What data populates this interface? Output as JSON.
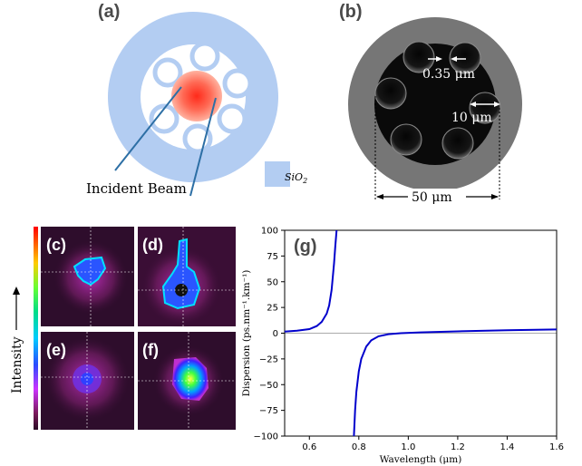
{
  "panel_a": {
    "letter": "(a)",
    "incident_label": "Incident Beam",
    "legend_label": "SiO",
    "legend_sub": "2",
    "colors": {
      "cladding": "#b3cdf2",
      "core": "#ff5a3c",
      "line": "#2d6fa5"
    }
  },
  "panel_b": {
    "letter": "(b)",
    "gap_label": "0.35 μm",
    "tube_label": "10 μm",
    "core_label": "50 μm",
    "colors": {
      "jacket": "#767676",
      "core": "#0a0a0a"
    }
  },
  "panel_cf": {
    "letters": [
      "(c)",
      "(d)",
      "(e)",
      "(f)"
    ],
    "intensity_label": "Intensity"
  },
  "chart_data": {
    "type": "line",
    "panel_letter": "(g)",
    "xlabel": "Wavelength (μm)",
    "ylabel": "Dispersion (ps.nm⁻¹.km⁻¹)",
    "xlim": [
      0.5,
      1.6
    ],
    "ylim": [
      -100,
      100
    ],
    "xticks": [
      0.6,
      0.8,
      1.0,
      1.2,
      1.4,
      1.6
    ],
    "xtick_labels": [
      "0.6",
      "0.8",
      "1.0",
      "1.2",
      "1.4",
      "1.6"
    ],
    "yticks": [
      100,
      75,
      50,
      25,
      0,
      -25,
      -50,
      -75,
      -100
    ],
    "ytick_labels": [
      "100",
      "75",
      "50",
      "25",
      "0",
      "−25",
      "−50",
      "−75",
      "−100"
    ],
    "grid": false,
    "zero_line": true,
    "series": [
      {
        "color": "#0000cc",
        "segments": [
          {
            "x": [
              0.5,
              0.55,
              0.6,
              0.63,
              0.65,
              0.67,
              0.68,
              0.69,
              0.7,
              0.705,
              0.71
            ],
            "y": [
              1.5,
              2.5,
              4,
              7,
              11,
              19,
              27,
              42,
              68,
              85,
              100
            ]
          },
          {
            "x": [
              0.78,
              0.785,
              0.79,
              0.8,
              0.81,
              0.83,
              0.85,
              0.88,
              0.92,
              0.97,
              1.05,
              1.2,
              1.4,
              1.6
            ],
            "y": [
              -100,
              -75,
              -57,
              -37,
              -25,
              -13,
              -7,
              -3,
              -1,
              0,
              0.8,
              1.8,
              2.8,
              3.6
            ]
          }
        ]
      }
    ]
  }
}
